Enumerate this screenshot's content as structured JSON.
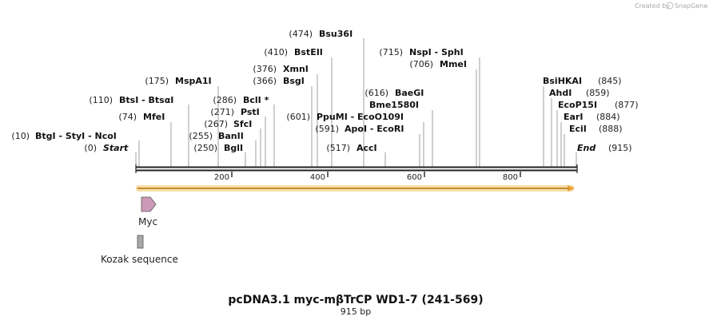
{
  "credit": "Created by SnapGene",
  "title": "pcDNA3.1 myc-mβTrCP WD1-7 (241-569)",
  "subtitle": "915 bp",
  "sites": [
    {
      "pos": "(474)",
      "name": "Bsu36I"
    },
    {
      "pos": "(410)",
      "name": "BstEII"
    },
    {
      "pos": "(715)",
      "name": "NspI  -  SphI"
    },
    {
      "pos": "(706)",
      "name": "MmeI"
    },
    {
      "pos": "(376)",
      "name": "XmnI"
    },
    {
      "pos": "(366)",
      "name": "BsgI"
    },
    {
      "pos": "(175)",
      "name": "MspA1I"
    },
    {
      "pos": "(845)",
      "name": "BsiHKAI"
    },
    {
      "pos": "(616)",
      "name": "BaeGI"
    },
    {
      "pos": "(859)",
      "name": "AhdI"
    },
    {
      "pos": "(110)",
      "name": "BtsI  -  BtsαI"
    },
    {
      "pos": "(286)",
      "name": "BclI *"
    },
    {
      "pos": "(877)",
      "name": "EcoP15I"
    },
    {
      "pos": "",
      "name": "Bme1580I"
    },
    {
      "pos": "(271)",
      "name": "PstI"
    },
    {
      "pos": "(74)",
      "name": "MfeI"
    },
    {
      "pos": "(601)",
      "name": "PpuMI  -  EcoO109I"
    },
    {
      "pos": "(884)",
      "name": "EarI"
    },
    {
      "pos": "(267)",
      "name": "SfcI"
    },
    {
      "pos": "(591)",
      "name": "ApoI  -  EcoRI"
    },
    {
      "pos": "(888)",
      "name": "EciI"
    },
    {
      "pos": "(10)",
      "name": "BtgI  -  StyI  -  NcoI"
    },
    {
      "pos": "(255)",
      "name": "BanII"
    },
    {
      "pos": "(250)",
      "name": "BglI"
    },
    {
      "pos": "(517)",
      "name": "AccI"
    },
    {
      "pos": "(0)",
      "name": "Start"
    },
    {
      "pos": "(915)",
      "name": "End"
    }
  ],
  "ticks": [
    "200",
    "400",
    "600",
    "800"
  ],
  "features": [
    {
      "name": "Myc"
    },
    {
      "name": "Kozak sequence"
    }
  ],
  "colors": {
    "backbone": "#222222",
    "orf_fill": "#e8a33a",
    "orf_glow": "#f6dfa8",
    "myc": "#cc99b8",
    "kozak": "#a8a8a8"
  }
}
